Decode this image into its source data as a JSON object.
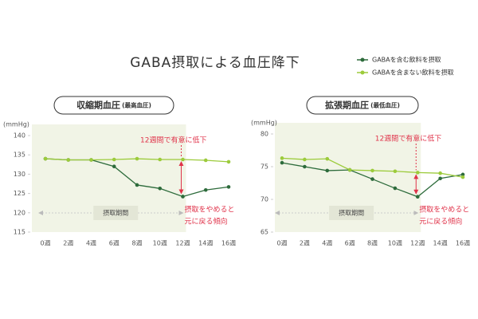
{
  "title": "GABA摂取による血圧降下",
  "chart_data": [
    {
      "type": "line",
      "title": "収縮期血圧",
      "subtitle": "(最高血圧)",
      "y_label": "(mmHg)",
      "categories": [
        "0週",
        "2週",
        "4週",
        "6週",
        "8週",
        "10週",
        "12週",
        "14週",
        "16週"
      ],
      "series": [
        {
          "name": "GABAを含む飲料を摂取",
          "color": "#2d6b3b",
          "values": [
            134,
            133.7,
            133.7,
            132,
            127.2,
            126.3,
            124.2,
            125.9,
            126.7
          ]
        },
        {
          "name": "GABAを含まない飲料を摂取",
          "color": "#9ccb3b",
          "values": [
            134,
            133.7,
            133.7,
            133.8,
            134,
            133.8,
            133.8,
            133.6,
            133.2
          ]
        }
      ],
      "ylim": [
        115,
        140
      ],
      "yticks": [
        115,
        120,
        125,
        130,
        135,
        140
      ],
      "annotations": [
        "12週間で有意に低下",
        "摂取をやめると",
        "元に戻る傾向"
      ],
      "period_label": "摂取期間"
    },
    {
      "type": "line",
      "title": "拡張期血圧",
      "subtitle": "(最低血圧)",
      "y_label": "(mmHg)",
      "categories": [
        "0週",
        "2週",
        "4週",
        "6週",
        "8週",
        "10週",
        "12週",
        "14週",
        "16週"
      ],
      "series": [
        {
          "color": "#2d6b3b",
          "values": [
            75.6,
            75,
            74.4,
            74.5,
            73.1,
            71.7,
            70.4,
            73.2,
            73.8
          ]
        },
        {
          "color": "#9ccb3b",
          "values": [
            76.3,
            76.1,
            76.2,
            74.5,
            74.4,
            74.3,
            74.1,
            74,
            73.4
          ]
        }
      ],
      "ylim": [
        65,
        80
      ],
      "yticks": [
        65,
        70,
        75,
        80
      ],
      "annotations": [
        "12週間で有意に低下",
        "摂取をやめると",
        "元に戻る傾向"
      ],
      "period_label": "摂取期間"
    }
  ]
}
